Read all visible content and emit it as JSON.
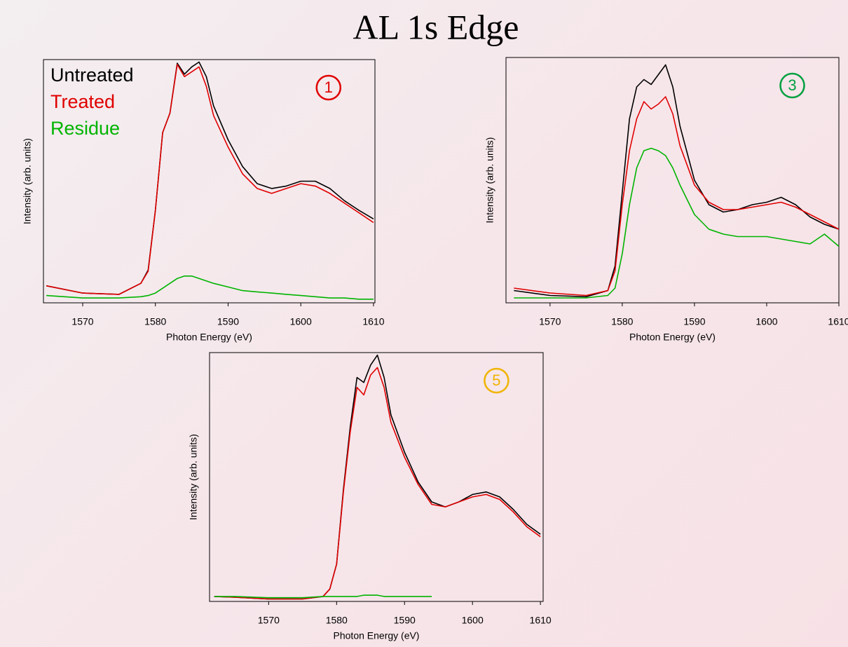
{
  "title": "AL 1s Edge",
  "chart_data": [
    {
      "type": "line",
      "xlabel": "Photon Energy (eV)",
      "ylabel": "Intensity (arb. units)",
      "annotation": {
        "text": "1",
        "color": "#e00000"
      },
      "xlim": [
        1564.6,
        1610.2
      ],
      "xticks": [
        1570,
        1580,
        1590,
        1600,
        1610
      ],
      "ylim": [
        0,
        1
      ],
      "x": [
        1565,
        1570,
        1575,
        1578,
        1579,
        1580,
        1581,
        1582,
        1583,
        1584,
        1585,
        1586,
        1587,
        1588,
        1590,
        1592,
        1594,
        1596,
        1598,
        1600,
        1602,
        1604,
        1606,
        1608,
        1610
      ],
      "series": [
        {
          "name": "Untreated",
          "color": "#000000",
          "values": [
            0.07,
            0.04,
            0.035,
            0.08,
            0.135,
            0.38,
            0.7,
            0.78,
            0.985,
            0.94,
            0.97,
            0.99,
            0.93,
            0.81,
            0.67,
            0.56,
            0.49,
            0.47,
            0.48,
            0.5,
            0.5,
            0.47,
            0.42,
            0.38,
            0.345
          ]
        },
        {
          "name": "Treated",
          "color": "#e00000",
          "values": [
            0.07,
            0.04,
            0.035,
            0.08,
            0.13,
            0.38,
            0.7,
            0.78,
            0.98,
            0.93,
            0.95,
            0.97,
            0.89,
            0.77,
            0.64,
            0.53,
            0.47,
            0.45,
            0.47,
            0.49,
            0.48,
            0.45,
            0.41,
            0.37,
            0.33
          ]
        },
        {
          "name": "Residue",
          "color": "#00b400",
          "values": [
            0.03,
            0.02,
            0.02,
            0.025,
            0.03,
            0.04,
            0.06,
            0.08,
            0.1,
            0.11,
            0.11,
            0.1,
            0.09,
            0.08,
            0.065,
            0.05,
            0.045,
            0.04,
            0.035,
            0.03,
            0.025,
            0.02,
            0.02,
            0.015,
            0.015
          ]
        }
      ]
    },
    {
      "type": "line",
      "xlabel": "Photon Energy (eV)",
      "ylabel": "Intensity (arb. units)",
      "annotation": {
        "text": "3",
        "color": "#00a040"
      },
      "xlim": [
        1563.9,
        1610
      ],
      "xticks": [
        1570,
        1580,
        1590,
        1600,
        1610
      ],
      "ylim": [
        0,
        1
      ],
      "x": [
        1565,
        1570,
        1575,
        1578,
        1579,
        1580,
        1581,
        1582,
        1583,
        1584,
        1585,
        1586,
        1587,
        1588,
        1590,
        1592,
        1594,
        1596,
        1598,
        1600,
        1602,
        1604,
        1606,
        1608,
        1610
      ],
      "series": [
        {
          "color": "#000000",
          "values": [
            0.05,
            0.03,
            0.025,
            0.05,
            0.15,
            0.45,
            0.75,
            0.88,
            0.91,
            0.89,
            0.93,
            0.97,
            0.88,
            0.72,
            0.5,
            0.4,
            0.37,
            0.38,
            0.4,
            0.41,
            0.43,
            0.4,
            0.35,
            0.32,
            0.3
          ]
        },
        {
          "color": "#e00000",
          "values": [
            0.06,
            0.04,
            0.03,
            0.05,
            0.13,
            0.4,
            0.62,
            0.75,
            0.82,
            0.79,
            0.81,
            0.84,
            0.77,
            0.64,
            0.48,
            0.41,
            0.38,
            0.38,
            0.39,
            0.4,
            0.41,
            0.39,
            0.36,
            0.33,
            0.3
          ]
        },
        {
          "color": "#00b400",
          "values": [
            0.02,
            0.02,
            0.02,
            0.03,
            0.06,
            0.2,
            0.4,
            0.55,
            0.62,
            0.63,
            0.62,
            0.6,
            0.55,
            0.48,
            0.36,
            0.3,
            0.28,
            0.27,
            0.27,
            0.27,
            0.26,
            0.25,
            0.24,
            0.28,
            0.23
          ]
        }
      ]
    },
    {
      "type": "line",
      "xlabel": "Photon Energy (eV)",
      "ylabel": "Intensity (arb. units)",
      "annotation": {
        "text": "5",
        "color": "#f0b400"
      },
      "xlim": [
        1561.3,
        1610.4
      ],
      "xticks": [
        1570,
        1580,
        1590,
        1600,
        1610
      ],
      "ylim": [
        0,
        1
      ],
      "x": [
        1562,
        1565,
        1570,
        1575,
        1578,
        1579,
        1580,
        1581,
        1582,
        1583,
        1584,
        1585,
        1586,
        1587,
        1588,
        1590,
        1592,
        1594,
        1596,
        1598,
        1600,
        1602,
        1604,
        1606,
        1608,
        1610
      ],
      "series": [
        {
          "color": "#000000",
          "values": [
            0.02,
            0.017,
            0.01,
            0.01,
            0.02,
            0.05,
            0.15,
            0.45,
            0.7,
            0.9,
            0.88,
            0.95,
            0.99,
            0.9,
            0.75,
            0.6,
            0.48,
            0.4,
            0.38,
            0.4,
            0.43,
            0.44,
            0.42,
            0.37,
            0.31,
            0.27
          ]
        },
        {
          "color": "#e00000",
          "values": [
            0.02,
            0.017,
            0.01,
            0.01,
            0.02,
            0.05,
            0.15,
            0.44,
            0.68,
            0.86,
            0.83,
            0.91,
            0.94,
            0.86,
            0.72,
            0.58,
            0.47,
            0.39,
            0.38,
            0.4,
            0.42,
            0.43,
            0.41,
            0.36,
            0.3,
            0.26
          ]
        },
        {
          "color": "#00b400",
          "values": [
            0.02,
            0.02,
            0.015,
            0.015,
            0.02,
            0.02,
            0.02,
            0.02,
            0.02,
            0.02,
            0.025,
            0.025,
            0.025,
            0.02,
            0.02,
            0.02,
            0.02,
            0.02,
            null,
            null,
            null,
            null,
            null,
            null,
            null,
            null
          ]
        }
      ]
    }
  ]
}
